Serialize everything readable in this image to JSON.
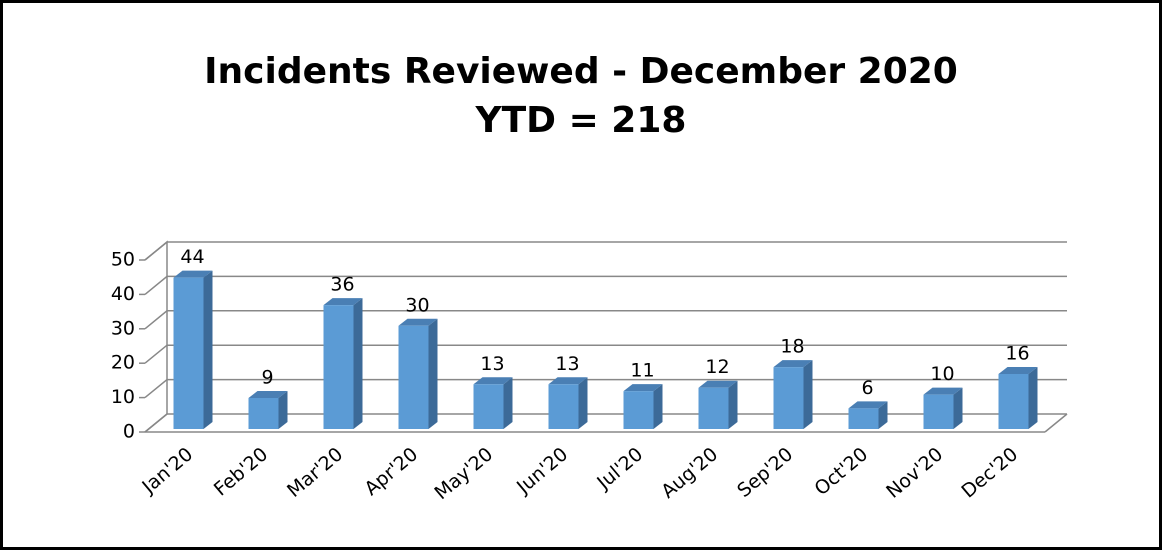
{
  "chart_data": {
    "type": "bar3d",
    "title": "Incidents Reviewed - December 2020",
    "subtitle": "YTD = 218",
    "categories": [
      "Jan'20",
      "Feb'20",
      "Mar'20",
      "Apr'20",
      "May'20",
      "Jun'20",
      "Jul'20",
      "Aug'20",
      "Sep'20",
      "Oct'20",
      "Nov'20",
      "Dec'20"
    ],
    "values": [
      44,
      9,
      36,
      30,
      13,
      13,
      11,
      12,
      18,
      6,
      10,
      16
    ],
    "color": "#5b9bd5",
    "ylim": [
      0,
      50
    ],
    "yticks": [
      0,
      10,
      20,
      30,
      40,
      50
    ],
    "grid": true
  }
}
